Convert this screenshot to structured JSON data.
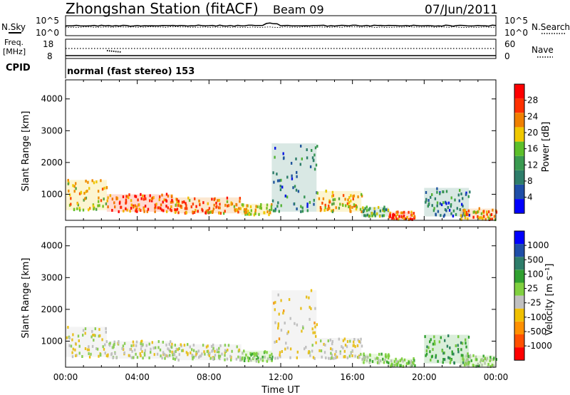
{
  "header": {
    "title": "Zhongshan Station (fitACF)",
    "beam": "Beam 09",
    "date": "07/Jun/2011"
  },
  "top_panels": {
    "nsky_label": "N.Sky",
    "nsearch_label": "N.Search",
    "nsky_tick_top": "10^5",
    "nsky_tick_bottom": "10^0",
    "freq_label_1": "Freq.",
    "freq_label_2": "[MHz]",
    "freq_tick_top": "18",
    "freq_tick_bottom": "8",
    "nave_label": "Nave",
    "nave_tick_top": "60",
    "nave_tick_bottom": "0",
    "cpid_label": "CPID",
    "cpid_text": "normal (fast stereo) 153"
  },
  "colors": {
    "power": [
      "#0000ff",
      "#1f4ea8",
      "#2e7d6a",
      "#3a9a50",
      "#5cbf2a",
      "#f0c800",
      "#f08000",
      "#ff3000",
      "#ff0000"
    ],
    "velocity": [
      "#ff0000",
      "#ff5000",
      "#ff9000",
      "#f0c000",
      "#c0c0c0",
      "#80d040",
      "#30a030",
      "#2e7d6a",
      "#1f4ea8",
      "#0000ff"
    ]
  },
  "chart_data": [
    {
      "type": "heatmap",
      "title": "",
      "xlabel": "Time UT",
      "ylabel": "Slant Range [km]",
      "colorbar_label": "Power [dB]",
      "colorbar_ticks": [
        "4",
        "8",
        "12",
        "16",
        "20",
        "24",
        "28"
      ],
      "colorbar_range": [
        0,
        32
      ],
      "x_ticks": [
        "00:00",
        "04:00",
        "08:00",
        "12:00",
        "16:00",
        "20:00",
        "00:00"
      ],
      "y_ticks": [
        "1000",
        "2000",
        "3000",
        "4000"
      ],
      "x_range_hours": [
        0,
        24
      ],
      "y_range_km": [
        180,
        4600
      ],
      "echo_regions": [
        {
          "t0": 0.0,
          "t1": 2.3,
          "r0": 500,
          "r1": 1450,
          "v": 20
        },
        {
          "t0": 2.3,
          "t1": 6.0,
          "r0": 450,
          "r1": 1000,
          "v": 25
        },
        {
          "t0": 6.0,
          "t1": 9.8,
          "r0": 400,
          "r1": 900,
          "v": 24
        },
        {
          "t0": 9.8,
          "t1": 11.5,
          "r0": 350,
          "r1": 700,
          "v": 18
        },
        {
          "t0": 11.5,
          "t1": 14.0,
          "r0": 450,
          "r1": 2600,
          "v": 10
        },
        {
          "t0": 14.0,
          "t1": 16.5,
          "r0": 450,
          "r1": 1100,
          "v": 20
        },
        {
          "t0": 16.5,
          "t1": 18.0,
          "r0": 300,
          "r1": 600,
          "v": 14
        },
        {
          "t0": 18.0,
          "t1": 19.5,
          "r0": 200,
          "r1": 450,
          "v": 26
        },
        {
          "t0": 20.0,
          "t1": 22.5,
          "r0": 300,
          "r1": 1200,
          "v": 8
        },
        {
          "t0": 22.0,
          "t1": 24.0,
          "r0": 200,
          "r1": 550,
          "v": 22
        }
      ]
    },
    {
      "type": "heatmap",
      "title": "",
      "xlabel": "Time UT",
      "ylabel": "Slant Range [km]",
      "colorbar_label": "Velocity [m s⁻¹]",
      "colorbar_ticks": [
        "-1000",
        "-500",
        "-100",
        "-25",
        "25",
        "100",
        "500",
        "1000"
      ],
      "colorbar_range": [
        -1250,
        1250
      ],
      "x_ticks": [
        "00:00",
        "04:00",
        "08:00",
        "12:00",
        "16:00",
        "20:00",
        "00:00"
      ],
      "y_ticks": [
        "1000",
        "2000",
        "3000",
        "4000"
      ],
      "x_range_hours": [
        0,
        24
      ],
      "y_range_km": [
        180,
        4600
      ],
      "echo_regions": [
        {
          "t0": 0.0,
          "t1": 2.3,
          "r0": 500,
          "r1": 1450,
          "v": -150
        },
        {
          "t0": 2.3,
          "t1": 6.0,
          "r0": 450,
          "r1": 1000,
          "v": -120
        },
        {
          "t0": 6.0,
          "t1": 9.8,
          "r0": 400,
          "r1": 900,
          "v": -80
        },
        {
          "t0": 9.8,
          "t1": 11.5,
          "r0": 350,
          "r1": 700,
          "v": 150
        },
        {
          "t0": 11.5,
          "t1": 14.0,
          "r0": 450,
          "r1": 2600,
          "v": -250
        },
        {
          "t0": 14.0,
          "t1": 16.5,
          "r0": 450,
          "r1": 1100,
          "v": -150
        },
        {
          "t0": 16.5,
          "t1": 18.0,
          "r0": 300,
          "r1": 600,
          "v": 120
        },
        {
          "t0": 18.0,
          "t1": 19.5,
          "r0": 200,
          "r1": 450,
          "v": 60
        },
        {
          "t0": 20.0,
          "t1": 22.5,
          "r0": 300,
          "r1": 1200,
          "v": 400
        },
        {
          "t0": 22.0,
          "t1": 24.0,
          "r0": 200,
          "r1": 550,
          "v": 80
        }
      ]
    }
  ]
}
